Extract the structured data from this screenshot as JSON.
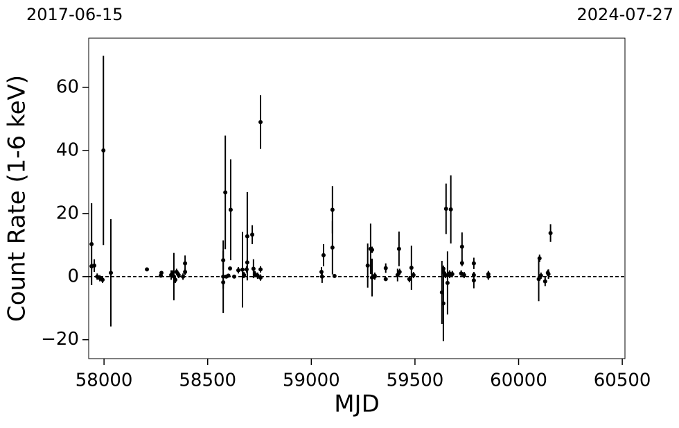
{
  "chart_data": {
    "type": "errorbar",
    "top_left_label": "2017-06-15",
    "top_right_label": "2024-07-27",
    "x_label": "MJD",
    "y_label": "Count Rate (1-6 keV)",
    "xlim": [
      57926,
      60513
    ],
    "ylim": [
      -26,
      75.6
    ],
    "xticks": [
      58000,
      58500,
      59000,
      59500,
      60000,
      60500
    ],
    "yticks": [
      {
        "value": -20,
        "label": "−20"
      },
      0,
      20,
      40,
      60
    ],
    "reference_line": 0,
    "series": [
      {
        "color": "#000000",
        "x": [
          57940,
          57940,
          57953,
          57967,
          57980,
          57997,
          57993,
          58033,
          58207,
          58274,
          58277,
          58324,
          58330,
          58337,
          58344,
          58350,
          58360,
          58381,
          58391,
          58391,
          58575,
          58575,
          58575,
          58585,
          58590,
          58600,
          58611,
          58608,
          58628,
          58648,
          58668,
          58675,
          58688,
          58691,
          58691,
          58715,
          58721,
          58728,
          58741,
          58755,
          58755,
          58755,
          59049,
          59052,
          59059,
          59102,
          59102,
          59112,
          59272,
          59286,
          59293,
          59293,
          59306,
          59306,
          59359,
          59359,
          59416,
          59423,
          59426,
          59473,
          59483,
          59493,
          59630,
          59637,
          59637,
          59637,
          59647,
          59650,
          59657,
          59667,
          59667,
          59673,
          59680,
          59723,
          59727,
          59727,
          59737,
          59784,
          59784,
          59784,
          59854,
          59854,
          60097,
          60101,
          60108,
          60128,
          60141,
          60154,
          60144
        ],
        "values": [
          10.3,
          3.3,
          3.5,
          0,
          -0.5,
          40,
          -1,
          1.2,
          2.3,
          0.3,
          1.2,
          0.5,
          1,
          0,
          -1,
          1.5,
          0.5,
          0,
          4.2,
          1.5,
          5.2,
          -1.8,
          0,
          26.7,
          0,
          0.3,
          21.2,
          2.6,
          0,
          2,
          2.2,
          0.5,
          2.3,
          12.8,
          4.5,
          13.3,
          2.5,
          0.8,
          0.3,
          49,
          2.3,
          -0.3,
          1.5,
          0,
          6.8,
          21.2,
          9.2,
          0.2,
          3.5,
          8.8,
          8.5,
          -0.3,
          0,
          0.3,
          2.7,
          -0.8,
          0.5,
          8.8,
          1.5,
          -0.8,
          2.8,
          0.5,
          -5,
          -8.5,
          2.5,
          1.5,
          0.5,
          21.5,
          -2,
          0.5,
          1,
          21.3,
          0.8,
          1,
          9.5,
          4.3,
          0.5,
          4.2,
          0.5,
          -1.2,
          0.8,
          0,
          -0.8,
          5.8,
          0.3,
          -1.5,
          1.2,
          13.8,
          0.8
        ],
        "errors": [
          13,
          1,
          2,
          1,
          1,
          30,
          1,
          17,
          0.5,
          0.5,
          0.5,
          1.5,
          1,
          7.5,
          1,
          1,
          1,
          1,
          2.5,
          1,
          3,
          2,
          11.5,
          18,
          0.5,
          0.5,
          16,
          0.5,
          0.5,
          1,
          12,
          1,
          1,
          14,
          1,
          3,
          3,
          1,
          1,
          8.5,
          1,
          1,
          1.5,
          2,
          3.5,
          7.5,
          8.5,
          0.5,
          7,
          8,
          1,
          6,
          1,
          1,
          1.5,
          0.5,
          2,
          5.5,
          1,
          1,
          7,
          1,
          10,
          12,
          1,
          1,
          1,
          8,
          10,
          1,
          1,
          10.8,
          1,
          1,
          4.5,
          1,
          1,
          1.8,
          1,
          2.5,
          1,
          1,
          7,
          1.2,
          1,
          1.5,
          1,
          2.8,
          1.5
        ]
      }
    ]
  }
}
